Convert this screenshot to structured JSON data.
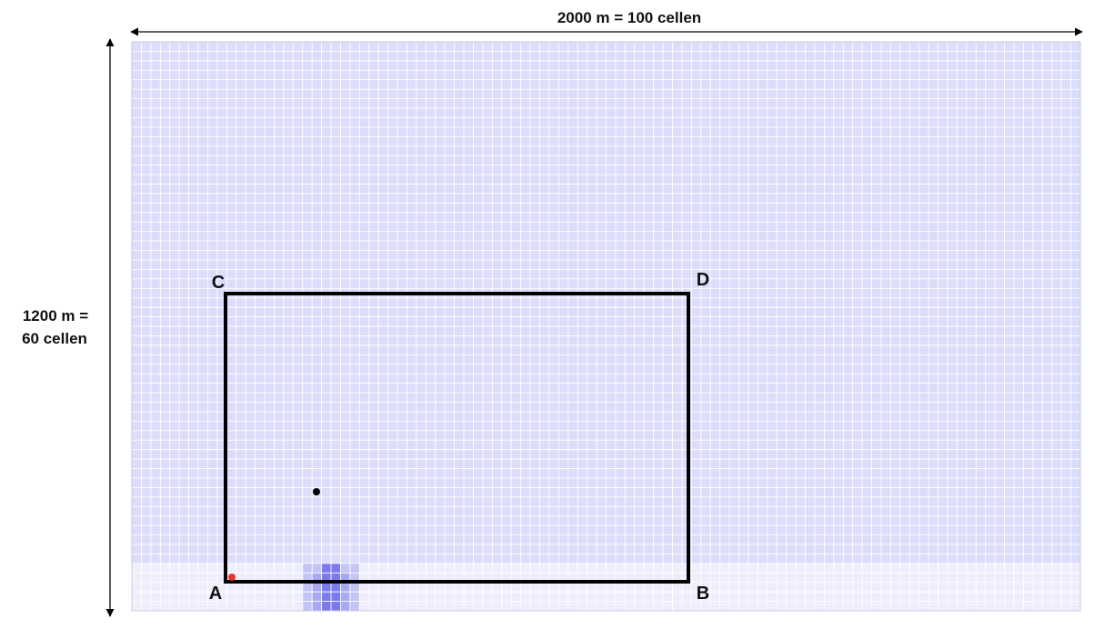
{
  "dimensions": {
    "width_label": "2000 m = 100 cellen",
    "height_label_line1": "1200 m =",
    "height_label_line2": "60 cellen"
  },
  "grid": {
    "columns": 100,
    "rows": 60,
    "band_rows": 5,
    "hot_columns": [
      18,
      19,
      20,
      21,
      22,
      23
    ],
    "colors": {
      "main_fill": "#dcdcfb",
      "band_fill": "#eeeefc",
      "grid_line": "#ffffff",
      "hot_light": "#c4c4f6",
      "hot_mid": "#a8a8f3",
      "hot_dark": "#7a7aee",
      "outline": "#000000",
      "red_marker": "#e8332b",
      "black_marker": "#000000"
    }
  },
  "corners": {
    "a": "A",
    "b": "B",
    "c": "C",
    "d": "D"
  }
}
